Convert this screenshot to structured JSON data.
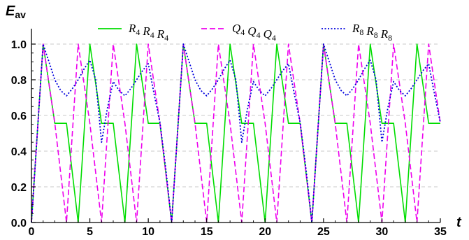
{
  "chart_data": {
    "type": "line",
    "title": "",
    "ylabel": "E",
    "ylabel_sub": "av",
    "xlabel": "t",
    "xlim": [
      0,
      35
    ],
    "ylim": [
      0,
      1.0
    ],
    "x_ticks": [
      0,
      5,
      10,
      15,
      20,
      25,
      30,
      35
    ],
    "x_tick_labels": [
      "0",
      "5",
      "10",
      "15",
      "20",
      "25",
      "30",
      "35"
    ],
    "y_ticks": [
      0,
      0.2,
      0.4,
      0.6,
      0.8,
      1.0
    ],
    "y_tick_labels": [
      "0.0",
      "0.2",
      "0.4",
      "0.6",
      "0.8",
      "1.0"
    ],
    "grid": {
      "horizontal": true,
      "vertical": false
    },
    "legend_position": "top",
    "series": [
      {
        "name": "R4R4R4",
        "legend_parts": [
          [
            "R",
            "4"
          ],
          [
            "R",
            "4"
          ],
          [
            "R",
            "4"
          ]
        ],
        "color": "#00dd00",
        "dash": "solid",
        "x": [
          0,
          1,
          2,
          3,
          4,
          5,
          6,
          7,
          8,
          9,
          10,
          11,
          12,
          13,
          14,
          15,
          16,
          17,
          18,
          19,
          20,
          21,
          22,
          23,
          24,
          25,
          26,
          27,
          28,
          29,
          30,
          31,
          32,
          33,
          34,
          35
        ],
        "y": [
          0,
          1.0,
          0.556,
          0.556,
          0,
          1.0,
          0.556,
          0.556,
          0,
          1.0,
          0.556,
          0.556,
          0,
          1.0,
          0.556,
          0.556,
          0,
          1.0,
          0.556,
          0.556,
          0,
          1.0,
          0.556,
          0.556,
          0,
          1.0,
          0.556,
          0.556,
          0,
          1.0,
          0.556,
          0.556,
          0,
          1.0,
          0.556,
          0.556
        ]
      },
      {
        "name": "Q4Q4Q4",
        "legend_parts": [
          [
            "Q",
            "4"
          ],
          [
            "Q",
            "4"
          ],
          [
            "Q",
            "4"
          ]
        ],
        "color": "#ee00ee",
        "dash": "dashed",
        "x": [
          0,
          1,
          2,
          3,
          4,
          5,
          6,
          7,
          8,
          9,
          10,
          11,
          12,
          13,
          14,
          15,
          16,
          17,
          18,
          19,
          20,
          21,
          22,
          23,
          24,
          25,
          26,
          27,
          28,
          29,
          30,
          31,
          32,
          33,
          34,
          35
        ],
        "y": [
          0,
          1.0,
          0.556,
          0,
          1.0,
          0.556,
          0,
          1.0,
          0.556,
          0,
          1.0,
          0.556,
          0,
          1.0,
          0.556,
          0,
          1.0,
          0.556,
          0,
          1.0,
          0.556,
          0,
          1.0,
          0.556,
          0,
          1.0,
          0.556,
          0,
          1.0,
          0.556,
          0,
          1.0,
          0.556,
          0,
          1.0,
          0.556
        ]
      },
      {
        "name": "R8R8R8",
        "legend_parts": [
          [
            "R",
            "8"
          ],
          [
            "R",
            "8"
          ],
          [
            "R",
            "8"
          ]
        ],
        "color": "#0000dd",
        "dash": "dotted",
        "x": [
          0,
          1,
          1.5,
          2,
          2.5,
          3,
          3.5,
          4,
          4.5,
          5,
          5.5,
          6,
          6.5,
          7,
          7.5,
          8,
          8.5,
          9,
          9.5,
          10,
          10.5,
          11,
          11.5,
          12,
          12.5,
          13,
          13.5,
          14,
          14.5,
          15,
          15.5,
          16,
          16.5,
          17,
          17.5,
          18,
          18.5,
          19,
          19.5,
          20,
          20.5,
          21,
          21.5,
          22,
          22.5,
          23,
          23.5,
          24,
          24.5,
          25,
          25.5,
          26,
          26.5,
          27,
          27.5,
          28,
          28.5,
          29,
          29.5,
          30,
          30.5,
          31,
          31.5,
          32,
          32.5,
          33,
          33.5,
          34,
          34.5,
          35
        ],
        "y": [
          0,
          1.0,
          0.9,
          0.8,
          0.74,
          0.71,
          0.75,
          0.8,
          0.86,
          0.91,
          0.8,
          0.45,
          0.64,
          0.79,
          0.74,
          0.71,
          0.75,
          0.8,
          0.85,
          0.89,
          0.72,
          0.56,
          0.3,
          0,
          0.5,
          1.0,
          0.9,
          0.8,
          0.74,
          0.71,
          0.75,
          0.8,
          0.86,
          0.91,
          0.8,
          0.45,
          0.64,
          0.79,
          0.74,
          0.71,
          0.75,
          0.8,
          0.85,
          0.89,
          0.72,
          0.56,
          0.3,
          0,
          0.5,
          1.0,
          0.9,
          0.8,
          0.74,
          0.71,
          0.75,
          0.8,
          0.86,
          0.91,
          0.8,
          0.45,
          0.64,
          0.79,
          0.74,
          0.71,
          0.75,
          0.8,
          0.85,
          0.89,
          0.72,
          0.56
        ]
      }
    ]
  }
}
